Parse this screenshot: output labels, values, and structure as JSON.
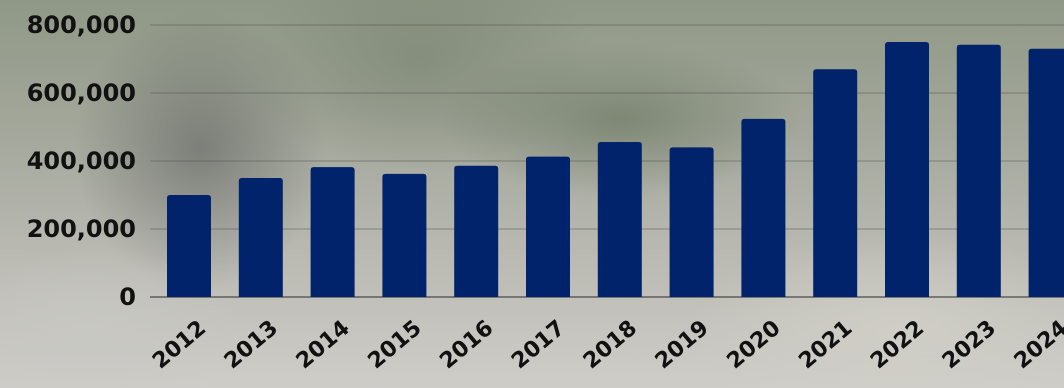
{
  "chart_data": {
    "type": "bar",
    "categories": [
      "2012",
      "2013",
      "2014",
      "2015",
      "2016",
      "2017",
      "2018",
      "2019",
      "2020",
      "2021",
      "2022",
      "2023",
      "2024"
    ],
    "values": [
      300000,
      350000,
      382000,
      362000,
      386000,
      413000,
      456000,
      440000,
      524000,
      670000,
      750000,
      742000,
      730000
    ],
    "ylim": [
      0,
      800000
    ],
    "yticks": [
      0,
      200000,
      400000,
      600000,
      800000
    ],
    "ytick_labels": [
      "0",
      "200,000",
      "400,000",
      "600,000",
      "800,000"
    ],
    "grid": true,
    "legend": "none",
    "bar_color": "#00236b",
    "title": "",
    "xlabel": "",
    "ylabel": ""
  }
}
